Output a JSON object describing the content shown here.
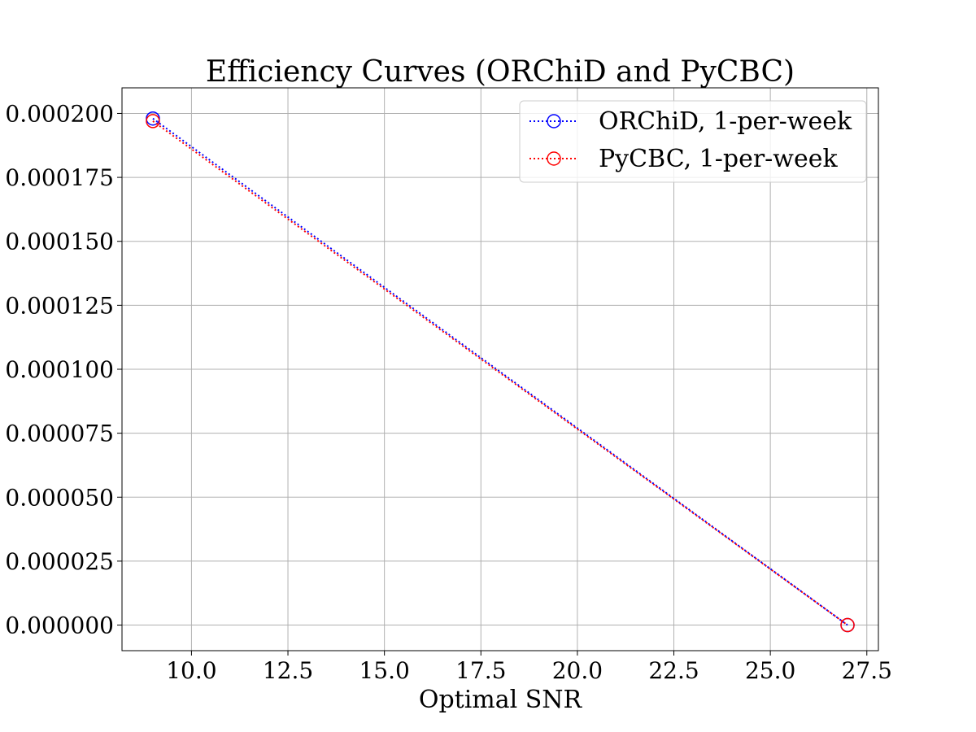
{
  "chart_data": {
    "type": "line",
    "title": "Efficiency Curves (ORChiD and PyCBC)",
    "xlabel": "Optimal SNR",
    "ylabel": "",
    "xlim": [
      8.2,
      27.8
    ],
    "ylim": [
      -1e-05,
      0.00021
    ],
    "xticks": [
      10.0,
      12.5,
      15.0,
      17.5,
      20.0,
      22.5,
      25.0,
      27.5
    ],
    "xtick_labels": [
      "10.0",
      "12.5",
      "15.0",
      "17.5",
      "20.0",
      "22.5",
      "25.0",
      "27.5"
    ],
    "yticks": [
      0.0,
      2.5e-05,
      5e-05,
      7.5e-05,
      0.0001,
      0.000125,
      0.00015,
      0.000175,
      0.0002
    ],
    "ytick_labels": [
      "0.000000",
      "0.000025",
      "0.000050",
      "0.000075",
      "0.000100",
      "0.000125",
      "0.000150",
      "0.000175",
      "0.000200"
    ],
    "grid": true,
    "legend_position": "top-right",
    "series": [
      {
        "name": "ORChiD, 1-per-week",
        "color": "#0000ff",
        "line_style": "dotted",
        "marker": "open-circle",
        "x": [
          9.0,
          27.0
        ],
        "y": [
          0.000198,
          0.0
        ]
      },
      {
        "name": "PyCBC, 1-per-week",
        "color": "#ff0000",
        "line_style": "dotted",
        "marker": "open-circle",
        "x": [
          9.0,
          27.0
        ],
        "y": [
          0.000197,
          0.0
        ]
      }
    ]
  }
}
